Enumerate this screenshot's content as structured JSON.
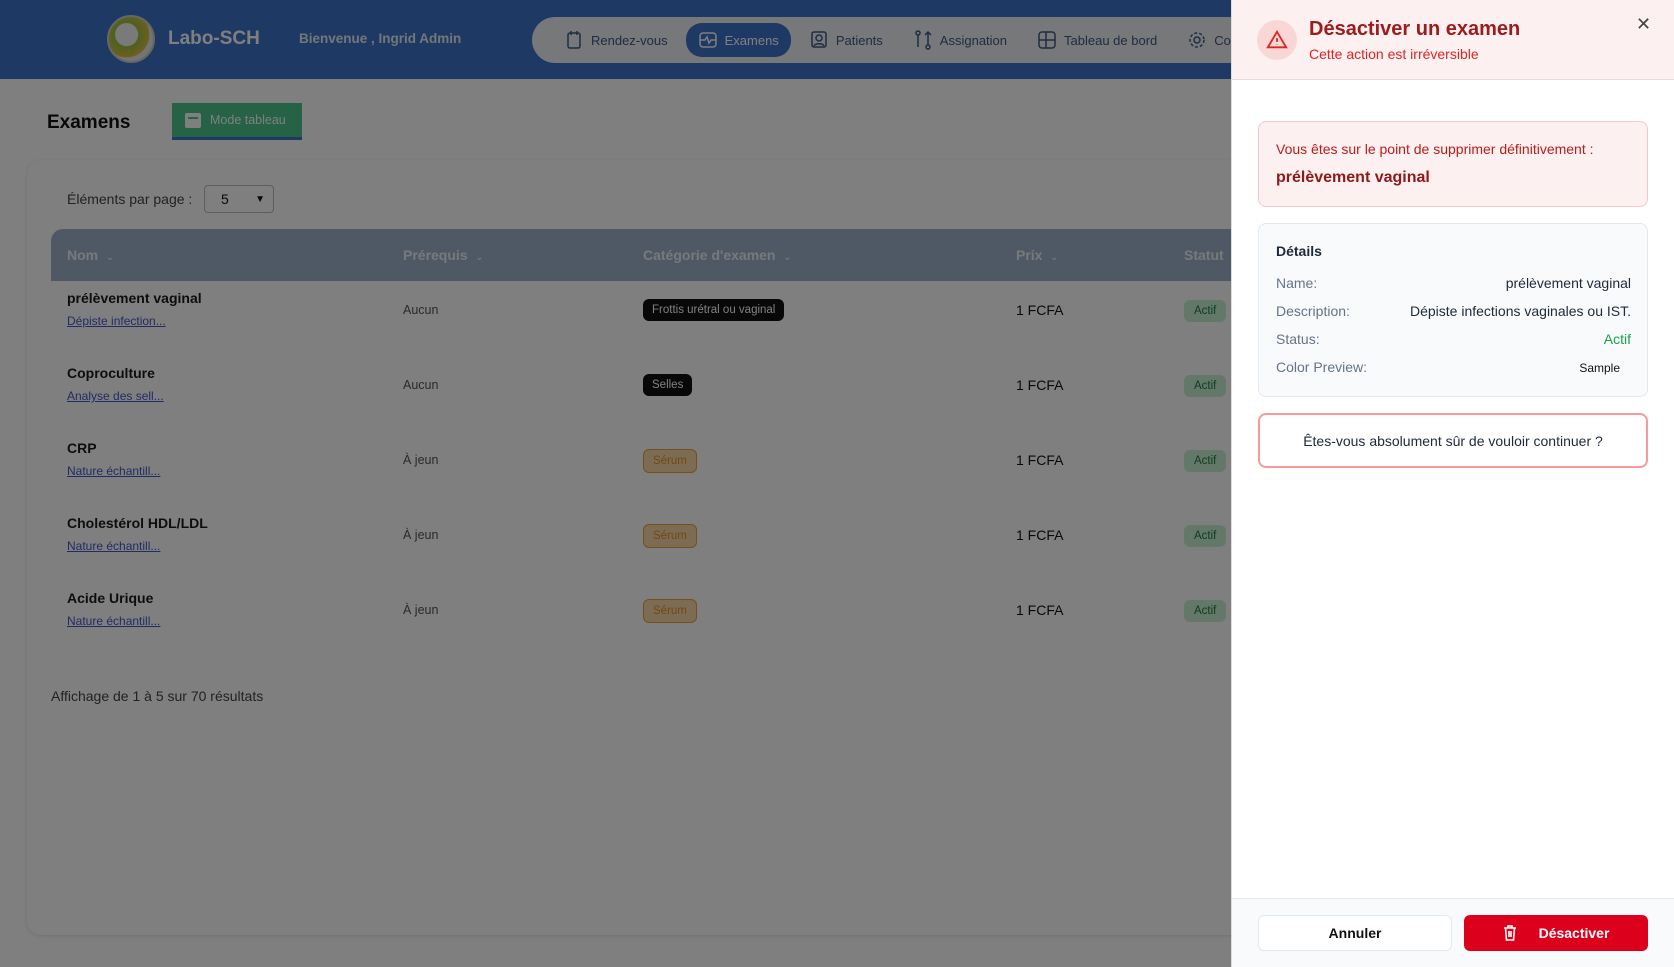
{
  "header": {
    "brand": "Labo-SCH",
    "welcome": "Bienvenue , Ingrid Admin",
    "nav": [
      {
        "label": "Rendez-vous",
        "icon": "calendar-icon"
      },
      {
        "label": "Examens",
        "icon": "activity-icon",
        "active": true
      },
      {
        "label": "Patients",
        "icon": "user-icon"
      },
      {
        "label": "Assignation",
        "icon": "swap-icon"
      },
      {
        "label": "Tableau de bord",
        "icon": "dashboard-icon"
      },
      {
        "label": "Con",
        "icon": "gear-icon"
      }
    ]
  },
  "page": {
    "title": "Examens",
    "mode_button": "Mode tableau",
    "per_page_label": "Éléments par page :",
    "per_page_value": "5",
    "footer": "Affichage de 1 à 5 sur 70 résultats"
  },
  "table": {
    "columns": [
      "Nom",
      "Prérequis",
      "Catégorie d'examen",
      "Prix",
      "Statut"
    ],
    "rows": [
      {
        "name": "prélèvement vaginal",
        "desc": "Dépiste infection...",
        "pre": "Aucun",
        "cat": "Frottis urétral ou vaginal",
        "cat_style": "dark",
        "prix": "1 FCFA",
        "statut": "Actif"
      },
      {
        "name": "Coproculture",
        "desc": "Analyse des sell...",
        "pre": "Aucun",
        "cat": "Selles",
        "cat_style": "dark",
        "prix": "1 FCFA",
        "statut": "Actif"
      },
      {
        "name": "CRP",
        "desc": "Nature échantill...",
        "pre": "À jeun",
        "cat": "Sérum",
        "cat_style": "serum",
        "prix": "1 FCFA",
        "statut": "Actif"
      },
      {
        "name": "Cholestérol HDL/LDL",
        "desc": "Nature échantill...",
        "pre": "À jeun",
        "cat": "Sérum",
        "cat_style": "serum",
        "prix": "1 FCFA",
        "statut": "Actif"
      },
      {
        "name": "Acide Urique",
        "desc": "Nature échantill...",
        "pre": "À jeun",
        "cat": "Sérum",
        "cat_style": "serum",
        "prix": "1 FCFA",
        "statut": "Actif"
      }
    ]
  },
  "drawer": {
    "title": "Désactiver un examen",
    "subtitle": "Cette action est irréversible",
    "warning_text": "Vous êtes sur le point de supprimer définitivement :",
    "warning_name": "prélèvement vaginal",
    "details_title": "Détails",
    "details": [
      {
        "label": "Name:",
        "value": "prélèvement vaginal"
      },
      {
        "label": "Description:",
        "value": "Dépiste infections vaginales ou IST."
      },
      {
        "label": "Status:",
        "value": "Actif",
        "color": "#16a34a"
      },
      {
        "label": "Color Preview:",
        "value": "Sample"
      }
    ],
    "confirm": "Êtes-vous absolument sûr de vouloir continuer ?",
    "cancel": "Annuler",
    "deactivate": "Désactiver",
    "accent": "#dc001c"
  }
}
